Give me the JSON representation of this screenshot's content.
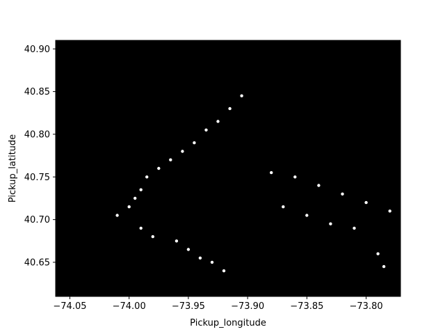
{
  "chart_data": {
    "type": "scatter",
    "title": "",
    "xlabel": "Pickup_longitude",
    "ylabel": "Pickup_latitude",
    "xlim": [
      -74.062,
      -73.771
    ],
    "ylim": [
      40.61,
      40.91
    ],
    "xticks": [
      -74.05,
      -74.0,
      -73.95,
      -73.9,
      -73.85,
      -73.8
    ],
    "xtick_labels": [
      "−74.05",
      "−74.00",
      "−73.95",
      "−73.90",
      "−73.85",
      "−73.80"
    ],
    "yticks": [
      40.65,
      40.7,
      40.75,
      40.8,
      40.85,
      40.9
    ],
    "ytick_labels": [
      "40.65",
      "40.70",
      "40.75",
      "40.80",
      "40.85",
      "40.90"
    ],
    "background_color": "#000000",
    "point_color": "#ffffff",
    "grid": false,
    "legend": "none",
    "series": [
      {
        "points": [
          [
            -73.975,
            40.76
          ],
          [
            -73.965,
            40.77
          ],
          [
            -73.955,
            40.78
          ],
          [
            -73.945,
            40.79
          ],
          [
            -73.935,
            40.805
          ],
          [
            -73.925,
            40.815
          ],
          [
            -73.915,
            40.83
          ],
          [
            -73.905,
            40.845
          ],
          [
            -73.985,
            40.75
          ],
          [
            -73.99,
            40.735
          ],
          [
            -73.995,
            40.725
          ],
          [
            -74.0,
            40.715
          ],
          [
            -74.01,
            40.705
          ],
          [
            -73.99,
            40.69
          ],
          [
            -73.98,
            40.68
          ],
          [
            -73.96,
            40.675
          ],
          [
            -73.95,
            40.665
          ],
          [
            -73.94,
            40.655
          ],
          [
            -73.93,
            40.65
          ],
          [
            -73.92,
            40.64
          ],
          [
            -73.88,
            40.755
          ],
          [
            -73.86,
            40.75
          ],
          [
            -73.84,
            40.74
          ],
          [
            -73.82,
            40.73
          ],
          [
            -73.8,
            40.72
          ],
          [
            -73.78,
            40.71
          ],
          [
            -73.87,
            40.715
          ],
          [
            -73.85,
            40.705
          ],
          [
            -73.83,
            40.695
          ],
          [
            -73.81,
            40.69
          ],
          [
            -73.79,
            40.66
          ],
          [
            -73.785,
            40.645
          ]
        ]
      }
    ]
  }
}
